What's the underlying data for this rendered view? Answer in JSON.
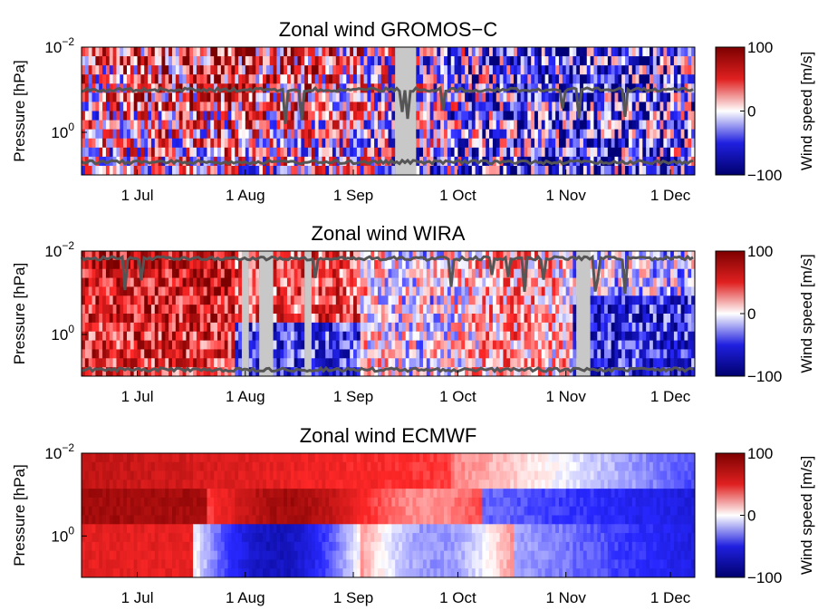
{
  "chart_data": [
    {
      "type": "heatmap",
      "title": "Zonal wind GROMOS−C",
      "ylabel": "Pressure [hPa]",
      "y_scale": "log",
      "y_range_hPa": [
        0.01,
        10
      ],
      "y_ticks": [
        {
          "value": 0.01,
          "base": "10",
          "exp": "−2"
        },
        {
          "value": 1,
          "base": "10",
          "exp": "0"
        }
      ],
      "x_start": "2015-06-15",
      "x_end": "2015-12-08",
      "x_ticks": [
        {
          "date": "2015-07-01",
          "label": "1 Jul"
        },
        {
          "date": "2015-08-01",
          "label": "1 Aug"
        },
        {
          "date": "2015-09-01",
          "label": "1 Sep"
        },
        {
          "date": "2015-10-01",
          "label": "1 Oct"
        },
        {
          "date": "2015-11-01",
          "label": "1 Nov"
        },
        {
          "date": "2015-12-01",
          "label": "1 Dec"
        }
      ],
      "colorbar": {
        "label": "Wind speed [m/s]",
        "min": -100,
        "max": 100,
        "ticks": [
          {
            "value": 100,
            "label": "100"
          },
          {
            "value": 0,
            "label": "0"
          },
          {
            "value": -100,
            "label": "−100"
          }
        ]
      },
      "data_gaps": [
        [
          "2015-09-13",
          "2015-09-19"
        ]
      ],
      "upper_limit_line": {
        "typical_hPa": 0.1
      },
      "lower_limit_line": {
        "typical_hPa": 5
      }
    },
    {
      "type": "heatmap",
      "title": "Zonal wind WIRA",
      "ylabel": "Pressure [hPa]",
      "y_scale": "log",
      "y_range_hPa": [
        0.01,
        10
      ],
      "y_ticks": [
        {
          "value": 0.01,
          "base": "10",
          "exp": "−2"
        },
        {
          "value": 1,
          "base": "10",
          "exp": "0"
        }
      ],
      "x_start": "2015-06-15",
      "x_end": "2015-12-08",
      "x_ticks": [
        {
          "date": "2015-07-01",
          "label": "1 Jul"
        },
        {
          "date": "2015-08-01",
          "label": "1 Aug"
        },
        {
          "date": "2015-09-01",
          "label": "1 Sep"
        },
        {
          "date": "2015-10-01",
          "label": "1 Oct"
        },
        {
          "date": "2015-11-01",
          "label": "1 Nov"
        },
        {
          "date": "2015-12-01",
          "label": "1 Dec"
        }
      ],
      "colorbar": {
        "label": "Wind speed [m/s]",
        "min": -100,
        "max": 100,
        "ticks": [
          {
            "value": 100,
            "label": "100"
          },
          {
            "value": 0,
            "label": "0"
          },
          {
            "value": -100,
            "label": "−100"
          }
        ]
      },
      "data_gaps": [
        [
          "2015-07-31",
          "2015-08-02"
        ],
        [
          "2015-08-05",
          "2015-08-09"
        ],
        [
          "2015-08-18",
          "2015-08-20"
        ],
        [
          "2015-11-04",
          "2015-11-08"
        ]
      ],
      "upper_limit_line": {
        "typical_hPa": 0.015
      },
      "lower_limit_line": {
        "typical_hPa": 7
      }
    },
    {
      "type": "heatmap",
      "title": "Zonal wind ECMWF",
      "ylabel": "Pressure [hPa]",
      "y_scale": "log",
      "y_range_hPa": [
        0.01,
        10
      ],
      "y_ticks": [
        {
          "value": 0.01,
          "base": "10",
          "exp": "−2"
        },
        {
          "value": 1,
          "base": "10",
          "exp": "0"
        }
      ],
      "x_start": "2015-06-15",
      "x_end": "2015-12-08",
      "x_ticks": [
        {
          "date": "2015-07-01",
          "label": "1 Jul"
        },
        {
          "date": "2015-08-01",
          "label": "1 Aug"
        },
        {
          "date": "2015-09-01",
          "label": "1 Sep"
        },
        {
          "date": "2015-10-01",
          "label": "1 Oct"
        },
        {
          "date": "2015-11-01",
          "label": "1 Nov"
        },
        {
          "date": "2015-12-01",
          "label": "1 Dec"
        }
      ],
      "colorbar": {
        "label": "Wind speed [m/s]",
        "min": -100,
        "max": 100,
        "ticks": [
          {
            "value": 100,
            "label": "100"
          },
          {
            "value": 0,
            "label": "0"
          },
          {
            "value": -100,
            "label": "−100"
          }
        ]
      },
      "data_gaps": []
    }
  ],
  "colors": {
    "positive": "#a50000",
    "zero": "#ffffff",
    "negative": "#0000a0",
    "gap": "#c8c8c8",
    "limit_line": "#555555"
  }
}
